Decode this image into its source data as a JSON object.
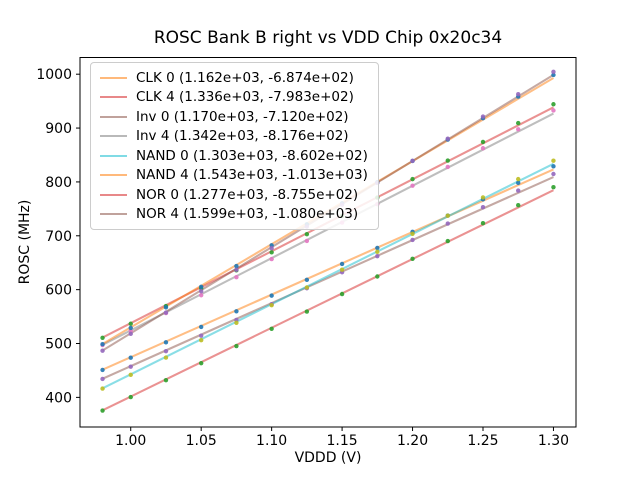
{
  "chart_data": {
    "type": "scatter",
    "title": "ROSC Bank B right vs VDD Chip 0x20c34",
    "xlabel": "VDDD (V)",
    "ylabel": "ROSC (MHz)",
    "xlim": [
      0.964,
      1.316
    ],
    "ylim": [
      345,
      1031
    ],
    "grid": false,
    "legend_position": "upper left",
    "x_tick_values": [
      1.0,
      1.05,
      1.1,
      1.15,
      1.2,
      1.25,
      1.3
    ],
    "x_tick_labels": [
      "1.00",
      "1.05",
      "1.10",
      "1.15",
      "1.20",
      "1.25",
      "1.30"
    ],
    "y_tick_values": [
      400,
      500,
      600,
      700,
      800,
      900,
      1000
    ],
    "y_tick_labels": [
      "400",
      "500",
      "600",
      "700",
      "800",
      "900",
      "1000"
    ],
    "x": [
      0.98,
      1.0,
      1.025,
      1.05,
      1.075,
      1.1,
      1.125,
      1.15,
      1.175,
      1.2,
      1.225,
      1.25,
      1.275,
      1.3
    ],
    "series": [
      {
        "name": "CLK 0",
        "legend_label": "CLK 0 (1.162e+03, -6.874e+02)",
        "fit_slope": 1162.0,
        "fit_intercept": -687.4,
        "line_color": "#ff7f0e",
        "marker_color": "#1f77b4",
        "scatter_y": [
          451.0,
          473.6,
          502.2,
          530.8,
          559.8,
          588.9,
          618.2,
          647.7,
          677.4,
          707.3,
          737.5,
          767.7,
          798.3,
          828.9
        ]
      },
      {
        "name": "CLK 4",
        "legend_label": "CLK 4 (1.336e+03, -7.983e+02)",
        "fit_slope": 1336.0,
        "fit_intercept": -798.3,
        "line_color": "#d62728",
        "marker_color": "#2ca02c",
        "scatter_y": [
          510.6,
          536.7,
          569.6,
          602.6,
          635.9,
          669.4,
          703.0,
          736.9,
          770.9,
          805.2,
          839.7,
          874.3,
          909.2,
          944.2
        ]
      },
      {
        "name": "Inv 0",
        "legend_label": "Inv 0 (1.170e+03, -7.120e+02)",
        "fit_slope": 1170.0,
        "fit_intercept": -712.0,
        "line_color": "#8c564b",
        "marker_color": "#9467bd",
        "scatter_y": [
          434.2,
          457.0,
          485.8,
          514.6,
          543.8,
          573.1,
          602.6,
          632.3,
          662.2,
          692.3,
          722.7,
          753.1,
          783.9,
          814.7
        ]
      },
      {
        "name": "Inv 4",
        "legend_label": "Inv 4 (1.342e+03, -8.176e+02)",
        "fit_slope": 1342.0,
        "fit_intercept": -817.6,
        "line_color": "#7f7f7f",
        "marker_color": "#e377c2",
        "scatter_y": [
          497.2,
          523.4,
          556.5,
          589.6,
          623.1,
          656.7,
          690.5,
          724.5,
          758.7,
          793.1,
          827.8,
          862.5,
          897.6,
          932.7
        ]
      },
      {
        "name": "NAND 0",
        "legend_label": "NAND 0 (1.303e+03, -8.602e+02)",
        "fit_slope": 1303.0,
        "fit_intercept": -860.2,
        "line_color": "#17becf",
        "marker_color": "#bcbd22",
        "scatter_y": [
          416.3,
          441.8,
          473.9,
          506.1,
          538.5,
          571.2,
          604.0,
          637.1,
          670.2,
          703.7,
          737.4,
          771.2,
          805.2,
          839.4
        ]
      },
      {
        "name": "NAND 4",
        "legend_label": "NAND 4 (1.543e+03, -1.013e+03)",
        "fit_slope": 1543.0,
        "fit_intercept": -1013.0,
        "line_color": "#ff7f0e",
        "marker_color": "#1f77b4",
        "scatter_y": [
          498.7,
          529.0,
          567.1,
          605.3,
          643.7,
          682.4,
          721.2,
          760.3,
          799.4,
          838.9,
          878.6,
          918.4,
          958.4,
          998.6
        ]
      },
      {
        "name": "NOR 0",
        "legend_label": "NOR 0 (1.277e+03, -8.755e+02)",
        "fit_slope": 1277.0,
        "fit_intercept": -875.5,
        "line_color": "#d62728",
        "marker_color": "#2ca02c",
        "scatter_y": [
          375.6,
          400.5,
          431.9,
          463.5,
          495.3,
          527.3,
          559.4,
          591.9,
          624.4,
          657.2,
          690.2,
          723.4,
          756.8,
          790.3
        ]
      },
      {
        "name": "NOR 4",
        "legend_label": "NOR 4 (1.599e+03, -1.080e+03)",
        "fit_slope": 1599.0,
        "fit_intercept": -1080.0,
        "line_color": "#8c564b",
        "marker_color": "#9467bd",
        "scatter_y": [
          486.6,
          518.0,
          557.5,
          597.1,
          636.9,
          677.0,
          717.2,
          757.7,
          798.2,
          839.1,
          880.2,
          921.4,
          962.8,
          1004.4
        ]
      }
    ]
  }
}
